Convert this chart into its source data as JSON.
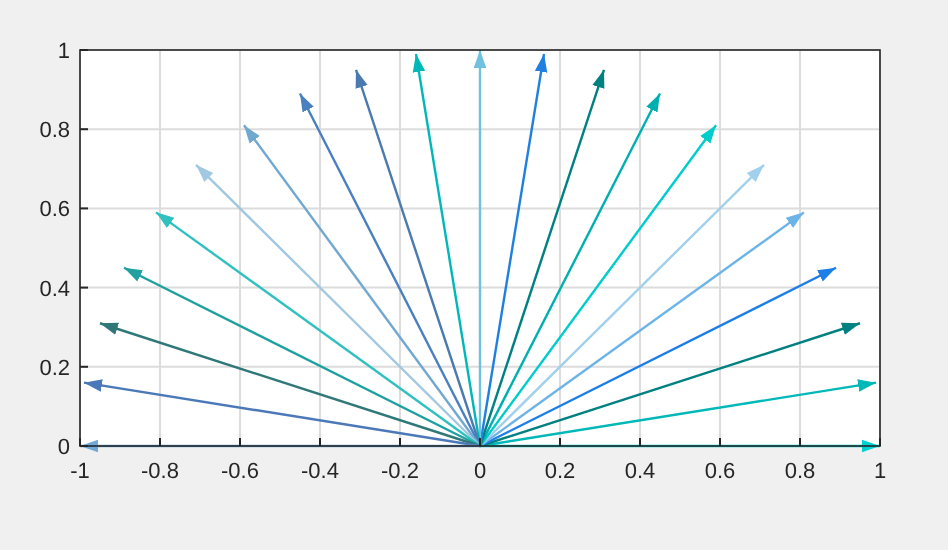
{
  "chart_data": {
    "type": "line",
    "xlim": [
      -1,
      1
    ],
    "ylim": [
      0,
      1
    ],
    "xticks": [
      -1,
      -0.8,
      -0.6,
      -0.4,
      -0.2,
      0,
      0.2,
      0.4,
      0.6,
      0.8,
      1
    ],
    "yticks": [
      0,
      0.2,
      0.4,
      0.6,
      0.8,
      1
    ],
    "grid": true,
    "series": [
      {
        "color": "#00d0d0",
        "x": [
          0,
          1
        ],
        "values": [
          0,
          0
        ]
      },
      {
        "color": "#00b8b8",
        "x": [
          0,
          0.99
        ],
        "values": [
          0,
          0.16
        ]
      },
      {
        "color": "#008080",
        "x": [
          0,
          0.95
        ],
        "values": [
          0,
          0.31
        ]
      },
      {
        "color": "#1e7ee8",
        "x": [
          0,
          0.89
        ],
        "values": [
          0,
          0.45
        ]
      },
      {
        "color": "#6cb4e8",
        "x": [
          0,
          0.81
        ],
        "values": [
          0,
          0.59
        ]
      },
      {
        "color": "#a0d0ec",
        "x": [
          0,
          0.71
        ],
        "values": [
          0,
          0.71
        ]
      },
      {
        "color": "#00cccc",
        "x": [
          0,
          0.59
        ],
        "values": [
          0,
          0.81
        ]
      },
      {
        "color": "#00b0b0",
        "x": [
          0,
          0.45
        ],
        "values": [
          0,
          0.89
        ]
      },
      {
        "color": "#008080",
        "x": [
          0,
          0.31
        ],
        "values": [
          0,
          0.95
        ]
      },
      {
        "color": "#2080e0",
        "x": [
          0,
          0.16
        ],
        "values": [
          0,
          0.99
        ]
      },
      {
        "color": "#70c0e0",
        "x": [
          0,
          0
        ],
        "values": [
          0,
          1
        ]
      },
      {
        "color": "#00b8b8",
        "x": [
          0,
          -0.16
        ],
        "values": [
          0,
          0.99
        ]
      },
      {
        "color": "#4a7ab0",
        "x": [
          0,
          -0.31
        ],
        "values": [
          0,
          0.95
        ]
      },
      {
        "color": "#4a80c0",
        "x": [
          0,
          -0.45
        ],
        "values": [
          0,
          0.89
        ]
      },
      {
        "color": "#70a8d0",
        "x": [
          0,
          -0.59
        ],
        "values": [
          0,
          0.81
        ]
      },
      {
        "color": "#a0c8e0",
        "x": [
          0,
          -0.71
        ],
        "values": [
          0,
          0.71
        ]
      },
      {
        "color": "#30c0c0",
        "x": [
          0,
          -0.81
        ],
        "values": [
          0,
          0.59
        ]
      },
      {
        "color": "#20a0a0",
        "x": [
          0,
          -0.89
        ],
        "values": [
          0,
          0.45
        ]
      },
      {
        "color": "#307878",
        "x": [
          0,
          -0.95
        ],
        "values": [
          0,
          0.31
        ]
      },
      {
        "color": "#4a78b8",
        "x": [
          0,
          -0.99
        ],
        "values": [
          0,
          0.16
        ]
      },
      {
        "color": "#70a8d8",
        "x": [
          0,
          -1
        ],
        "values": [
          0,
          0
        ]
      }
    ]
  }
}
